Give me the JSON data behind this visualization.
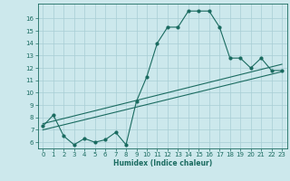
{
  "xlabel": "Humidex (Indice chaleur)",
  "background_color": "#cce8ec",
  "grid_color": "#a8cdd4",
  "line_color": "#1a6b60",
  "xlim": [
    -0.5,
    23.5
  ],
  "ylim": [
    5.5,
    17.2
  ],
  "xticks": [
    0,
    1,
    2,
    3,
    4,
    5,
    6,
    7,
    8,
    9,
    10,
    11,
    12,
    13,
    14,
    15,
    16,
    17,
    18,
    19,
    20,
    21,
    22,
    23
  ],
  "yticks": [
    6,
    7,
    8,
    9,
    10,
    11,
    12,
    13,
    14,
    15,
    16
  ],
  "series1_x": [
    0,
    1,
    2,
    3,
    4,
    5,
    6,
    7,
    8,
    9,
    10,
    11,
    12,
    13,
    14,
    15,
    16,
    17,
    18,
    19,
    20,
    21,
    22,
    23
  ],
  "series1_y": [
    7.3,
    8.2,
    6.5,
    5.8,
    6.3,
    6.0,
    6.2,
    6.8,
    5.8,
    9.3,
    11.3,
    14.0,
    15.3,
    15.3,
    16.6,
    16.6,
    16.6,
    15.3,
    12.8,
    12.8,
    12.0,
    12.8,
    11.8,
    11.8
  ],
  "series2_x": [
    0,
    23
  ],
  "series2_y": [
    7.0,
    11.7
  ],
  "series3_x": [
    0,
    23
  ],
  "series3_y": [
    7.5,
    12.3
  ],
  "tick_fontsize": 5,
  "xlabel_fontsize": 5.5,
  "marker_size": 2.0,
  "line_width": 0.8
}
